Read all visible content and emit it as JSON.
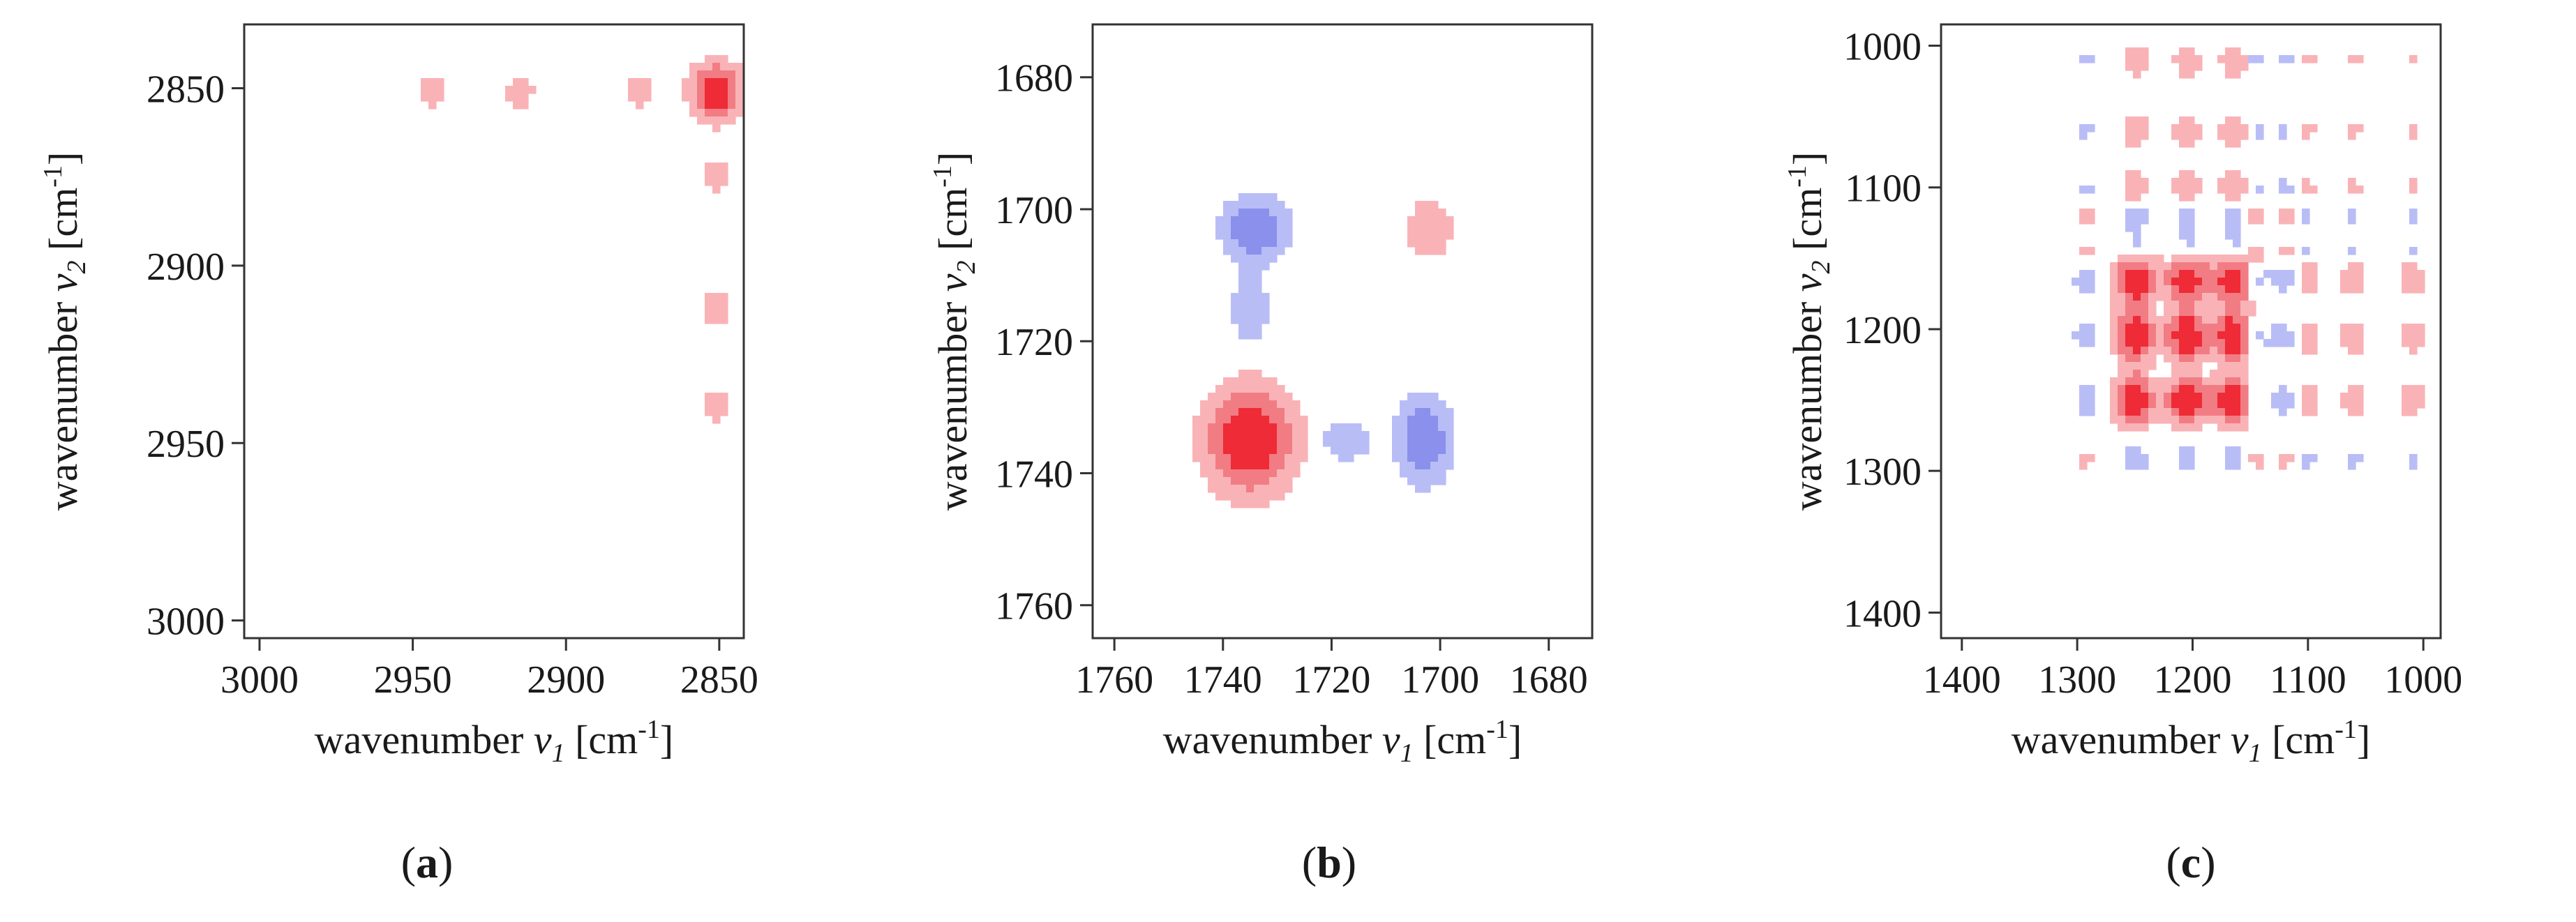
{
  "colors": {
    "positive_light": "#f9b3b7",
    "positive_mid": "#f27c83",
    "positive_strong": "#ee2b36",
    "negative_light": "#b9bdf6",
    "negative_mid": "#8a90ec",
    "negative_strong": "#5e66e6"
  },
  "chart_data": [
    {
      "type": "heatmap",
      "panel_label": "a",
      "xlabel": {
        "prefix": "wavenumber ",
        "symbol": "ν",
        "sub": "1",
        "unit_open": " [cm",
        "unit_sup": "-1",
        "unit_close": "]"
      },
      "ylabel": {
        "prefix": "wavenumber ",
        "symbol": "ν",
        "sub": "2",
        "unit_open": " [cm",
        "unit_sup": "-1",
        "unit_close": "]"
      },
      "xlim": [
        3005,
        2842
      ],
      "ylim": [
        2832,
        3005
      ],
      "x_ticks": [
        3000,
        2950,
        2900,
        2850
      ],
      "y_ticks": [
        2850,
        2900,
        2950,
        3000
      ],
      "grid": false,
      "peaks": [
        {
          "x": 2851,
          "y": 2851,
          "sx": 4.5,
          "sy": 4.5,
          "level": 3,
          "sign": 1
        },
        {
          "x": 2876,
          "y": 2851,
          "sx": 3,
          "sy": 3,
          "level": 1,
          "sign": 1
        },
        {
          "x": 2915,
          "y": 2851,
          "sx": 3,
          "sy": 3,
          "level": 1,
          "sign": 1
        },
        {
          "x": 2944,
          "y": 2851,
          "sx": 3,
          "sy": 3,
          "level": 1,
          "sign": 1
        },
        {
          "x": 2851,
          "y": 2875,
          "sx": 3,
          "sy": 3,
          "level": 1,
          "sign": 1
        },
        {
          "x": 2851,
          "y": 2912,
          "sx": 3,
          "sy": 3,
          "level": 1,
          "sign": 1
        },
        {
          "x": 2851,
          "y": 2940,
          "sx": 3,
          "sy": 3,
          "level": 1,
          "sign": 1
        }
      ]
    },
    {
      "type": "heatmap",
      "panel_label": "b",
      "xlabel": {
        "prefix": "wavenumber ",
        "symbol": "ν",
        "sub": "1",
        "unit_open": " [cm",
        "unit_sup": "-1",
        "unit_close": "]"
      },
      "ylabel": {
        "prefix": "wavenumber ",
        "symbol": "ν",
        "sub": "2",
        "unit_open": " [cm",
        "unit_sup": "-1",
        "unit_close": "]"
      },
      "xlim": [
        1764,
        1672
      ],
      "ylim": [
        1672,
        1765
      ],
      "x_ticks": [
        1760,
        1740,
        1720,
        1700,
        1680
      ],
      "y_ticks": [
        1680,
        1700,
        1720,
        1740,
        1760
      ],
      "grid": false,
      "peaks": [
        {
          "x": 1735,
          "y": 1735,
          "sx": 4.5,
          "sy": 4.5,
          "level": 3,
          "sign": 1
        },
        {
          "x": 1702,
          "y": 1703,
          "sx": 3,
          "sy": 3,
          "level": 1,
          "sign": 1
        },
        {
          "x": 1734,
          "y": 1703,
          "sx": 3.8,
          "sy": 3,
          "level": 2,
          "sign": -1
        },
        {
          "x": 1735,
          "y": 1715,
          "sx": 2.2,
          "sy": 3.5,
          "level": 1,
          "sign": -1
        },
        {
          "x": 1703,
          "y": 1735,
          "sx": 3.2,
          "sy": 4,
          "level": 2,
          "sign": -1
        },
        {
          "x": 1717,
          "y": 1735,
          "sx": 3,
          "sy": 2,
          "level": 1,
          "sign": -1
        }
      ]
    },
    {
      "type": "heatmap",
      "panel_label": "c",
      "xlabel": {
        "prefix": "wavenumber ",
        "symbol": "ν",
        "sub": "1",
        "unit_open": " [cm",
        "unit_sup": "-1",
        "unit_close": "]"
      },
      "ylabel": {
        "prefix": "wavenumber ",
        "symbol": "ν",
        "sub": "2",
        "unit_open": " [cm",
        "unit_sup": "-1",
        "unit_close": "]"
      },
      "xlim": [
        1418,
        985
      ],
      "ylim": [
        985,
        1418
      ],
      "x_ticks": [
        1400,
        1300,
        1200,
        1100,
        1000
      ],
      "y_ticks": [
        1000,
        1100,
        1200,
        1300,
        1400
      ],
      "grid": false,
      "grid_axis": [
        1292,
        1250,
        1205,
        1165,
        1145,
        1120,
        1100,
        1060,
        1010
      ],
      "strong_axis": [
        1250,
        1205,
        1165
      ],
      "minor_axis": [
        1100,
        1060
      ],
      "negative_bands": [
        1145,
        1120,
        1292
      ],
      "strong_cross_signs": {
        "1165": 1,
        "1205": 1,
        "1250": 1
      }
    }
  ]
}
